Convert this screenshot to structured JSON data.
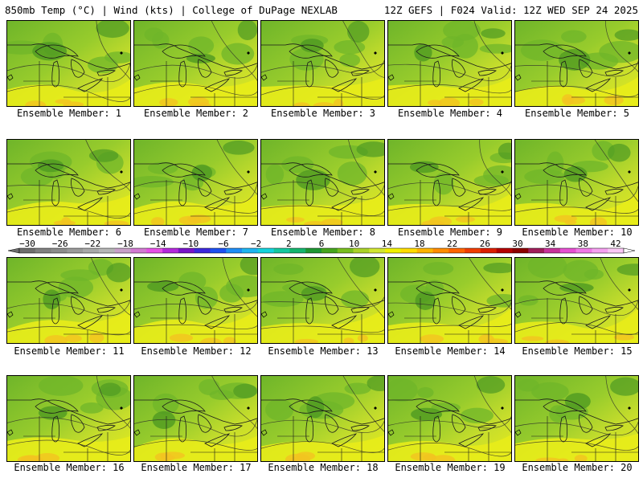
{
  "header": {
    "left": "850mb Temp (°C) | Wind (kts) | College of DuPage NEXLAB",
    "right": "12Z GEFS | F024 Valid: 12Z WED SEP 24 2025"
  },
  "panel_label_prefix": "Ensemble Member: ",
  "members": [
    1,
    2,
    3,
    4,
    5,
    6,
    7,
    8,
    9,
    10,
    11,
    12,
    13,
    14,
    15,
    16,
    17,
    18,
    19,
    20
  ],
  "colorbar": {
    "ticks": [
      "-30",
      "-26",
      "-22",
      "-18",
      "-14",
      "-10",
      "-6",
      "-2",
      "2",
      "6",
      "10",
      "14",
      "18",
      "22",
      "26",
      "30",
      "34",
      "38",
      "42"
    ],
    "colors": [
      "#6e6e6e",
      "#808080",
      "#8c8c8c",
      "#9a9a9a",
      "#a8a8a8",
      "#b6b6b6",
      "#c8a0c8",
      "#d27ad2",
      "#e650e6",
      "#b428dc",
      "#7814c8",
      "#3c28dc",
      "#1e50f0",
      "#1e8cf5",
      "#1eb4f0",
      "#14d2dc",
      "#14c8a0",
      "#14b46e",
      "#1e9632",
      "#46a51e",
      "#78be1e",
      "#aad228",
      "#d2e632",
      "#f0f000",
      "#ffdc00",
      "#ffb400",
      "#ff8c00",
      "#ff6400",
      "#f03c00",
      "#dc1e00",
      "#b40000",
      "#8c0000",
      "#a01e5a",
      "#c8329b",
      "#e650d2",
      "#f078e6",
      "#f5a0f0",
      "#fac8f5"
    ]
  },
  "palette": {
    "dark_green": "#4f9a22",
    "green": "#6fb52a",
    "light_green": "#98cc2c",
    "yellow_green": "#c6dd2c",
    "yellow": "#e8ec1a",
    "orange": "#f3c321"
  }
}
